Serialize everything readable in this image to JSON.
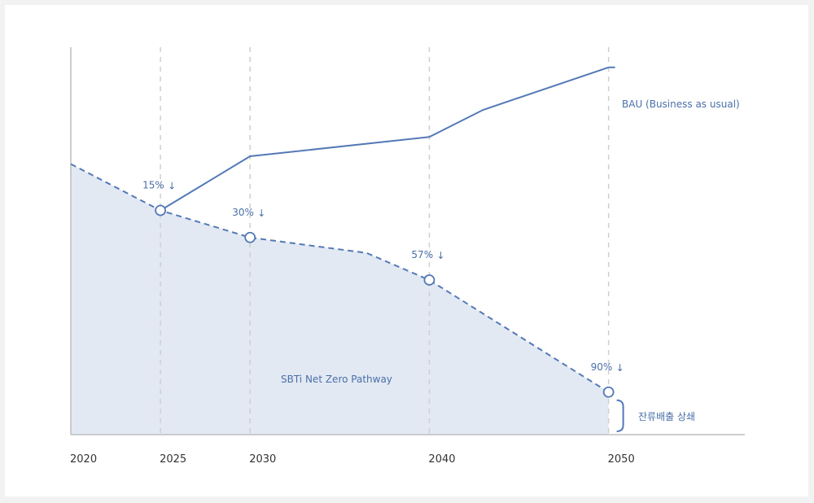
{
  "colors": {
    "line": "#5479b6",
    "area": "#e3e9f3",
    "label": "#4a6fa8",
    "grid": "#cfcfcf",
    "axis": "#bdbdbd"
  },
  "chart_data": {
    "type": "line",
    "x_ticks": [
      "2020",
      "2025",
      "2030",
      "2040",
      "2050"
    ],
    "series": [
      {
        "name": "BAU (Business as usual)",
        "style": "solid",
        "points": [
          [
            2025,
            58
          ],
          [
            2030,
            72
          ],
          [
            2040,
            77
          ],
          [
            2043,
            84
          ],
          [
            2050,
            95
          ]
        ]
      },
      {
        "name": "SBTi Net Zero Pathway",
        "style": "dashed-area",
        "points": [
          [
            2020,
            70
          ],
          [
            2025,
            58
          ],
          [
            2030,
            51
          ],
          [
            2036.5,
            47
          ],
          [
            2040,
            40
          ],
          [
            2050,
            11
          ]
        ]
      }
    ],
    "markers": [
      {
        "x": 2025,
        "y": 58,
        "label": "15%",
        "arrow": "↓"
      },
      {
        "x": 2030,
        "y": 51,
        "label": "30%",
        "arrow": "↓"
      },
      {
        "x": 2040,
        "y": 40,
        "label": "57%",
        "arrow": "↓"
      },
      {
        "x": 2050,
        "y": 11,
        "label": "90%",
        "arrow": "↓"
      }
    ],
    "annotations": {
      "bau_label": "BAU (Business as usual)",
      "pathway_label": "SBTi Net Zero Pathway",
      "residual_label": "잔류배출 상쇄"
    },
    "xlim": [
      2020,
      2057.6
    ],
    "ylim": [
      0,
      100
    ],
    "grid_years": [
      2025,
      2030,
      2040,
      2050
    ]
  }
}
